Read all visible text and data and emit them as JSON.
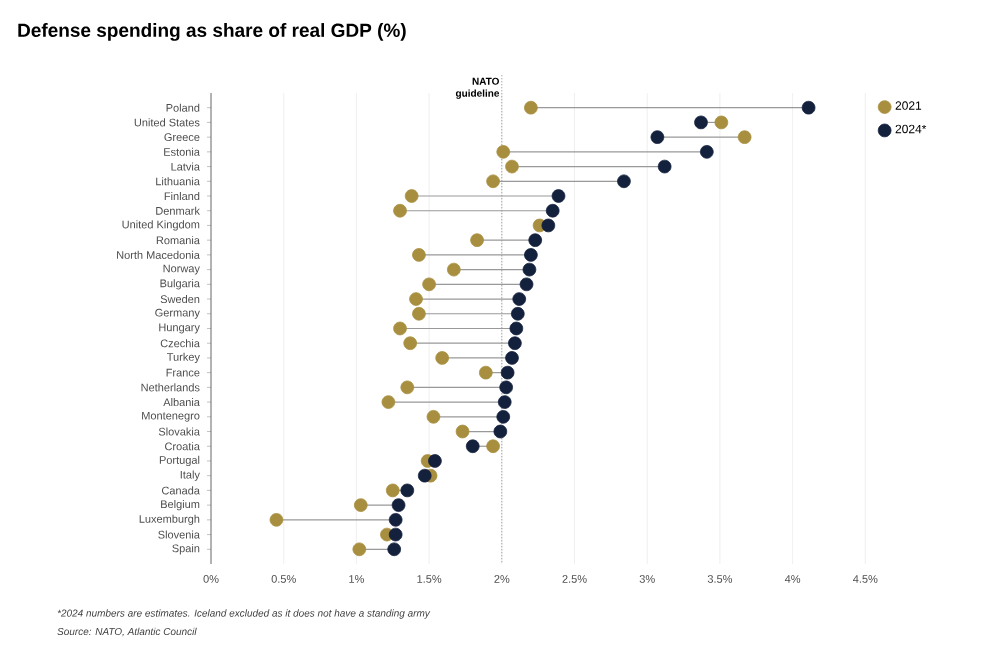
{
  "chart_data": {
    "type": "scatter",
    "orientation": "horizontal",
    "title": "Defense spending as share of real GDP (%)",
    "categories": [
      "Poland",
      "United States",
      "Greece",
      "Estonia",
      "Latvia",
      "Lithuania",
      "Finland",
      "Denmark",
      "United Kingdom",
      "Romania",
      "North Macedonia",
      "Norway",
      "Bulgaria",
      "Sweden",
      "Germany",
      "Hungary",
      "Czechia",
      "Turkey",
      "France",
      "Netherlands",
      "Albania",
      "Montenegro",
      "Slovakia",
      "Croatia",
      "Portugal",
      "Italy",
      "Canada",
      "Belgium",
      "Luxemburgh",
      "Slovenia",
      "Spain"
    ],
    "series": [
      {
        "name": "2021",
        "color": "#a88f3f",
        "values": [
          2.2,
          3.51,
          3.67,
          2.01,
          2.07,
          1.94,
          1.38,
          1.3,
          2.26,
          1.83,
          1.43,
          1.67,
          1.5,
          1.41,
          1.43,
          1.3,
          1.37,
          1.59,
          1.89,
          1.35,
          1.22,
          1.53,
          1.73,
          1.94,
          1.49,
          1.51,
          1.25,
          1.03,
          0.45,
          1.21,
          1.02
        ]
      },
      {
        "name": "2024*",
        "color": "#14213d",
        "values": [
          4.11,
          3.37,
          3.07,
          3.41,
          3.12,
          2.84,
          2.39,
          2.35,
          2.32,
          2.23,
          2.2,
          2.19,
          2.17,
          2.12,
          2.11,
          2.1,
          2.09,
          2.07,
          2.04,
          2.03,
          2.02,
          2.01,
          1.99,
          1.8,
          1.54,
          1.47,
          1.35,
          1.29,
          1.27,
          1.27,
          1.26
        ]
      }
    ],
    "xlim": [
      0,
      4.5
    ],
    "xticks": [
      {
        "value": 0,
        "label": "0%"
      },
      {
        "value": 0.5,
        "label": "0.5%"
      },
      {
        "value": 1,
        "label": "1%"
      },
      {
        "value": 1.5,
        "label": "1.5%"
      },
      {
        "value": 2,
        "label": "2%"
      },
      {
        "value": 2.5,
        "label": "2.5%"
      },
      {
        "value": 3,
        "label": "3%"
      },
      {
        "value": 3.5,
        "label": "3.5%"
      },
      {
        "value": 4,
        "label": "4%"
      },
      {
        "value": 4.5,
        "label": "4.5%"
      }
    ],
    "ref_lines": [
      {
        "axis": "x",
        "value": 2,
        "label": "NATO guideline",
        "color": "#888888",
        "line_style": "dotted"
      }
    ],
    "grid": "x",
    "legend": "top right",
    "annotations": [
      "*2024 numbers are estimates. Iceland excluded as it does not have a standing army",
      "Source: NATO, Atlantic Council"
    ]
  }
}
